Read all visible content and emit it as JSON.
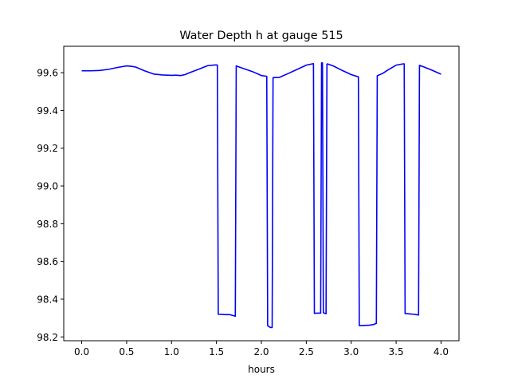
{
  "chart_data": {
    "type": "line",
    "title": "Water Depth h at gauge 515",
    "xlabel": "hours",
    "ylabel": "",
    "xlim": [
      -0.2,
      4.2
    ],
    "ylim": [
      98.18,
      99.74
    ],
    "grid": false,
    "x_ticks": [
      0.0,
      0.5,
      1.0,
      1.5,
      2.0,
      2.5,
      3.0,
      3.5,
      4.0
    ],
    "x_tick_labels": [
      "0.0",
      "0.5",
      "1.0",
      "1.5",
      "2.0",
      "2.5",
      "3.0",
      "3.5",
      "4.0"
    ],
    "y_ticks": [
      98.2,
      98.4,
      98.6,
      98.8,
      99.0,
      99.2,
      99.4,
      99.6
    ],
    "y_tick_labels": [
      "98.2",
      "98.4",
      "98.6",
      "98.8",
      "99.0",
      "99.2",
      "99.4",
      "99.6"
    ],
    "line_color": "#0000ff",
    "series": [
      {
        "x": [
          0.0,
          0.1,
          0.2,
          0.3,
          0.4,
          0.5,
          0.55,
          0.6,
          0.7,
          0.8,
          0.9,
          1.0,
          1.05,
          1.1,
          1.15,
          1.2,
          1.3,
          1.4,
          1.48,
          1.51,
          1.52,
          1.6,
          1.65,
          1.71,
          1.72,
          1.8,
          1.9,
          2.0,
          2.06,
          2.07,
          2.1,
          2.12,
          2.13,
          2.2,
          2.3,
          2.4,
          2.5,
          2.58,
          2.59,
          2.62,
          2.66,
          2.67,
          2.68,
          2.69,
          2.72,
          2.73,
          2.74,
          2.8,
          2.9,
          3.0,
          3.08,
          3.09,
          3.1,
          3.2,
          3.25,
          3.28,
          3.29,
          3.35,
          3.4,
          3.5,
          3.58,
          3.59,
          3.6,
          3.65,
          3.7,
          3.75,
          3.76,
          3.8,
          3.9,
          4.0
        ],
        "y": [
          99.61,
          99.61,
          99.612,
          99.618,
          99.628,
          99.636,
          99.634,
          99.63,
          99.61,
          99.593,
          99.588,
          99.586,
          99.587,
          99.585,
          99.59,
          99.6,
          99.618,
          99.637,
          99.641,
          99.641,
          98.32,
          98.318,
          98.318,
          98.31,
          99.636,
          99.622,
          99.606,
          99.585,
          99.581,
          98.26,
          98.25,
          98.25,
          99.574,
          99.575,
          99.596,
          99.618,
          99.64,
          99.648,
          98.325,
          98.326,
          98.326,
          99.652,
          99.652,
          98.328,
          98.323,
          99.646,
          99.646,
          99.636,
          99.612,
          99.59,
          99.578,
          98.26,
          98.26,
          98.262,
          98.266,
          98.272,
          99.584,
          99.596,
          99.612,
          99.64,
          99.647,
          99.647,
          98.324,
          98.322,
          98.32,
          98.316,
          99.639,
          99.632,
          99.613,
          99.592
        ]
      }
    ]
  }
}
